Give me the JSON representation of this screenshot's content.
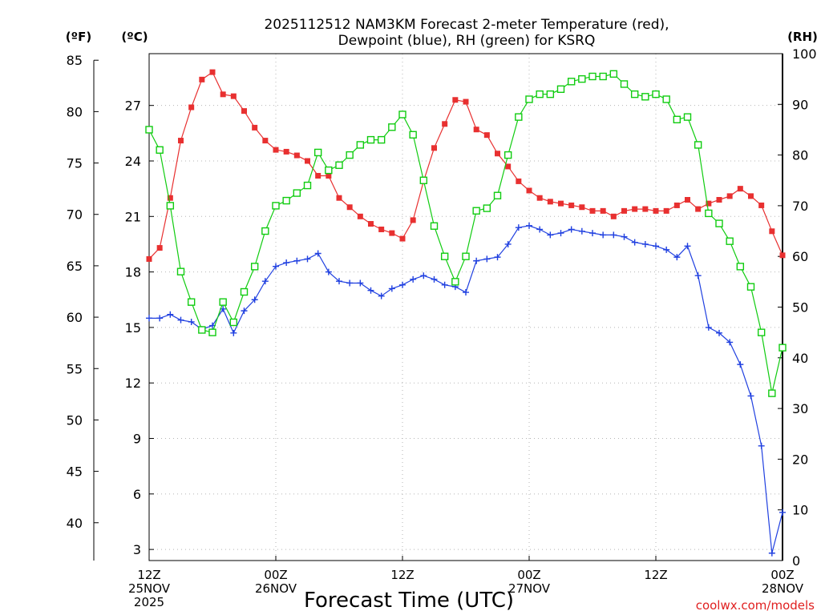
{
  "title_line1": "2025112512 NAM3KM Forecast 2-meter Temperature (red),",
  "title_line2": "Dewpoint (blue), RH (green) for KSRQ",
  "unit_f": "(ºF)",
  "unit_c": "(ºC)",
  "unit_rh": "(RH)",
  "credit": "coolwx.com/models",
  "chart_data": {
    "type": "line",
    "title": "2025112512 NAM3KM Forecast 2-meter Temperature (red), Dewpoint (blue), RH (green) for KSRQ",
    "xlabel": "Forecast Time (UTC)",
    "x_range_hours": [
      0,
      60
    ],
    "x_ticks": [
      {
        "hour": 0,
        "lines": [
          "12Z",
          "25NOV",
          "2025"
        ]
      },
      {
        "hour": 12,
        "lines": [
          "00Z",
          "26NOV"
        ]
      },
      {
        "hour": 24,
        "lines": [
          "12Z"
        ]
      },
      {
        "hour": 36,
        "lines": [
          "00Z",
          "27NOV"
        ]
      },
      {
        "hour": 48,
        "lines": [
          "12Z"
        ]
      },
      {
        "hour": 60,
        "lines": [
          "00Z",
          "28NOV"
        ]
      }
    ],
    "celsius_axis": {
      "label": "ºC",
      "range": [
        2.4,
        29.8
      ],
      "ticks": [
        3,
        6,
        9,
        12,
        15,
        18,
        21,
        24,
        27
      ]
    },
    "fahrenheit_axis": {
      "label": "ºF",
      "ticks": [
        40,
        45,
        50,
        55,
        60,
        65,
        70,
        75,
        80,
        85
      ]
    },
    "rh_axis": {
      "label": "RH",
      "range": [
        0,
        100
      ],
      "ticks": [
        0,
        10,
        20,
        30,
        40,
        50,
        60,
        70,
        80,
        90,
        100
      ]
    },
    "hours": [
      0,
      1,
      2,
      3,
      4,
      5,
      6,
      7,
      8,
      9,
      10,
      11,
      12,
      13,
      14,
      15,
      16,
      17,
      18,
      19,
      20,
      21,
      22,
      23,
      24,
      25,
      26,
      27,
      28,
      29,
      30,
      31,
      32,
      33,
      34,
      35,
      36,
      37,
      38,
      39,
      40,
      41,
      42,
      43,
      44,
      45,
      46,
      47,
      48,
      49,
      50,
      51,
      52,
      53,
      54,
      55,
      56,
      57,
      58,
      59,
      60
    ],
    "series": [
      {
        "name": "2-meter Temperature",
        "unit": "C",
        "color": "#e83030",
        "marker": "filled-square",
        "values": [
          18.7,
          19.3,
          22.0,
          25.1,
          26.9,
          28.4,
          28.8,
          27.6,
          27.5,
          26.7,
          25.8,
          25.1,
          24.6,
          24.5,
          24.3,
          24.0,
          23.2,
          23.2,
          22.0,
          21.5,
          21.0,
          20.6,
          20.3,
          20.1,
          19.8,
          20.8,
          22.9,
          24.7,
          26.0,
          27.3,
          27.2,
          25.7,
          25.4,
          24.4,
          23.7,
          22.9,
          22.4,
          22.0,
          21.8,
          21.7,
          21.6,
          21.5,
          21.3,
          21.3,
          21.0,
          21.3,
          21.4,
          21.4,
          21.3,
          21.3,
          21.6,
          21.9,
          21.4,
          21.7,
          21.9,
          22.1,
          22.5,
          22.1,
          21.6,
          20.2,
          18.9
        ]
      },
      {
        "name": "Dewpoint",
        "unit": "C",
        "color": "#2040e0",
        "marker": "plus",
        "values": [
          15.5,
          15.5,
          15.7,
          15.4,
          15.3,
          14.9,
          15.1,
          16.0,
          14.7,
          15.9,
          16.5,
          17.5,
          18.3,
          18.5,
          18.6,
          18.7,
          19.0,
          18.0,
          17.5,
          17.4,
          17.4,
          17.0,
          16.7,
          17.1,
          17.3,
          17.6,
          17.8,
          17.6,
          17.3,
          17.2,
          16.9,
          18.6,
          18.7,
          18.8,
          19.5,
          20.4,
          20.5,
          20.3,
          20.0,
          20.1,
          20.3,
          20.2,
          20.1,
          20.0,
          20.0,
          19.9,
          19.6,
          19.5,
          19.4,
          19.2,
          18.8,
          19.4,
          17.8,
          15.0,
          14.7,
          14.2,
          13.0,
          11.3,
          8.6,
          2.8,
          5.0
        ]
      },
      {
        "name": "Relative Humidity",
        "unit": "%",
        "color": "#10cc10",
        "marker": "open-square",
        "values": [
          85,
          81,
          70,
          57,
          51,
          45.5,
          45,
          51,
          47,
          53,
          58,
          65,
          70,
          71,
          72.5,
          74,
          80.5,
          77,
          78,
          80,
          82,
          83,
          83,
          85.5,
          88,
          84,
          75,
          66,
          60,
          55,
          60,
          69,
          69.5,
          72,
          80,
          87.5,
          91,
          92,
          92,
          93,
          94.5,
          95,
          95.5,
          95.5,
          96,
          94,
          92,
          91.5,
          92,
          91,
          87,
          87.5,
          82,
          68.5,
          66.5,
          63,
          58,
          54,
          45,
          33,
          42
        ]
      }
    ]
  }
}
